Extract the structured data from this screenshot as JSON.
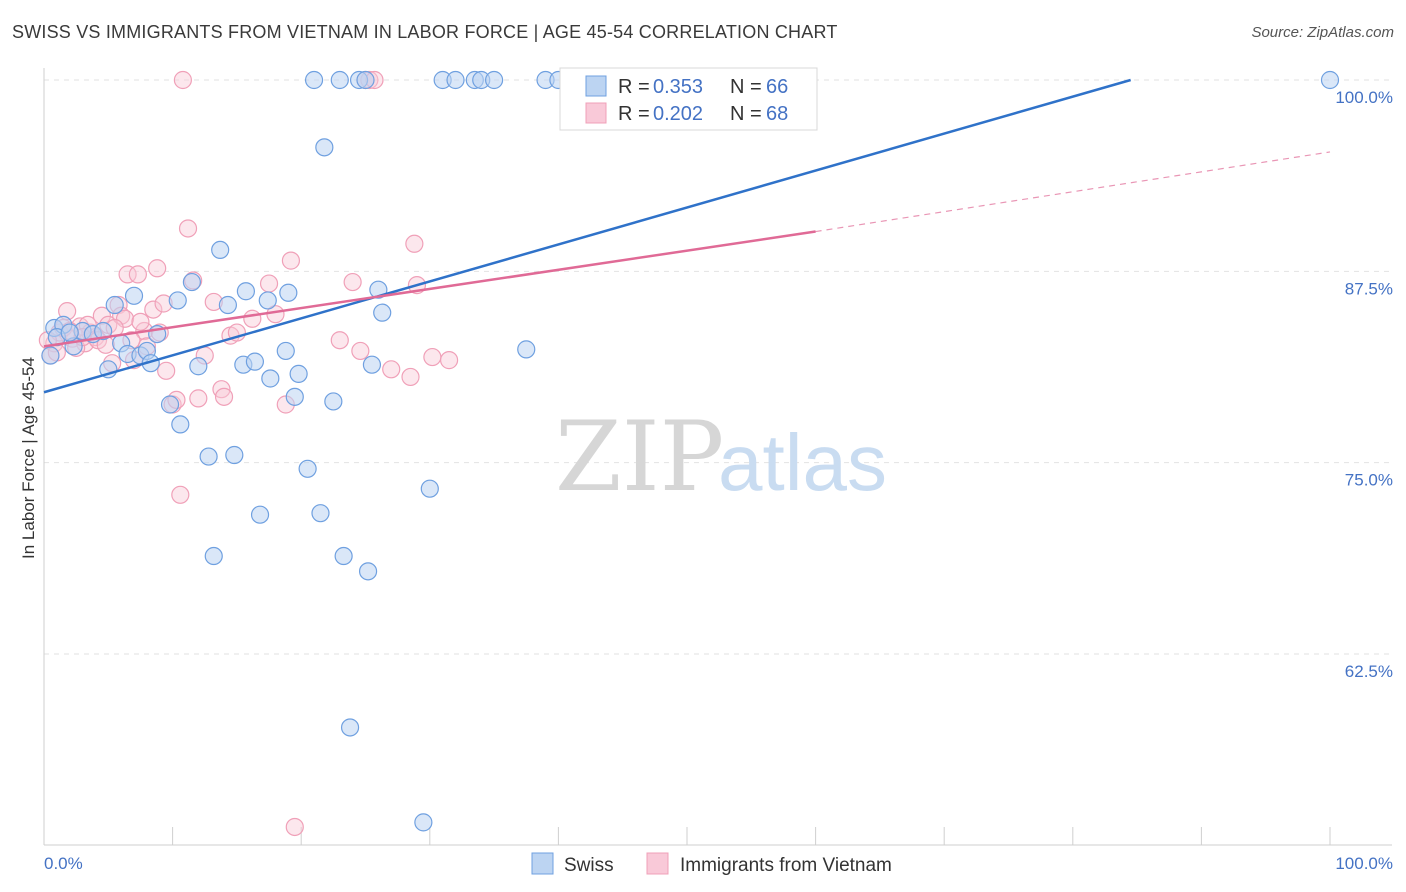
{
  "title": "SWISS VS IMMIGRANTS FROM VIETNAM IN LABOR FORCE | AGE 45-54 CORRELATION CHART",
  "source": "Source: ZipAtlas.com",
  "watermark": {
    "zip": "ZIP",
    "atlas": "atlas"
  },
  "chart_data": {
    "type": "scatter",
    "ylabel": "In Labor Force | Age 45-54",
    "xlim": [
      0,
      100
    ],
    "ylim": [
      51,
      102
    ],
    "x_tick_labels": [
      "0.0%",
      "100.0%"
    ],
    "y_ticks": [
      100,
      87.5,
      75,
      62.5
    ],
    "y_tick_labels": [
      "100.0%",
      "87.5%",
      "75.0%",
      "62.5%"
    ],
    "legend": [
      {
        "r_label": "R =",
        "r_value": "0.353",
        "n_label": "N =",
        "n_value": "66"
      },
      {
        "r_label": "R =",
        "r_value": "0.202",
        "n_label": "N =",
        "n_value": "68"
      }
    ],
    "series": [
      {
        "name": "Swiss",
        "color": "#6fa0e0",
        "line_color": "#2f72c9",
        "trend": {
          "x0": 0,
          "y0": 79.6,
          "x1": 84.5,
          "y1": 100.0
        },
        "points": [
          [
            0.8,
            83.8
          ],
          [
            1.5,
            84.0
          ],
          [
            2.3,
            82.6
          ],
          [
            3.0,
            83.6
          ],
          [
            3.8,
            83.4
          ],
          [
            4.6,
            83.6
          ],
          [
            5.0,
            81.1
          ],
          [
            5.5,
            85.3
          ],
          [
            6.0,
            82.8
          ],
          [
            6.5,
            82.1
          ],
          [
            7.0,
            85.9
          ],
          [
            7.5,
            82.0
          ],
          [
            8.0,
            82.3
          ],
          [
            8.3,
            81.5
          ],
          [
            8.8,
            83.4
          ],
          [
            9.8,
            78.8
          ],
          [
            10.4,
            85.6
          ],
          [
            10.6,
            77.5
          ],
          [
            11.5,
            86.8
          ],
          [
            12.0,
            81.3
          ],
          [
            12.8,
            75.4
          ],
          [
            13.2,
            68.9
          ],
          [
            13.7,
            88.9
          ],
          [
            14.3,
            85.3
          ],
          [
            14.8,
            75.5
          ],
          [
            15.5,
            81.4
          ],
          [
            15.7,
            86.2
          ],
          [
            16.4,
            81.6
          ],
          [
            16.8,
            71.6
          ],
          [
            17.4,
            85.6
          ],
          [
            17.6,
            80.5
          ],
          [
            18.8,
            82.3
          ],
          [
            19.0,
            86.1
          ],
          [
            19.5,
            79.3
          ],
          [
            19.8,
            80.8
          ],
          [
            20.5,
            74.6
          ],
          [
            21.0,
            100.0
          ],
          [
            21.5,
            71.7
          ],
          [
            21.8,
            95.6
          ],
          [
            22.5,
            79.0
          ],
          [
            23.0,
            100.0
          ],
          [
            23.3,
            68.9
          ],
          [
            23.8,
            57.7
          ],
          [
            24.5,
            100.0
          ],
          [
            25.0,
            100.0
          ],
          [
            25.2,
            67.9
          ],
          [
            25.5,
            81.4
          ],
          [
            26.0,
            86.3
          ],
          [
            26.3,
            84.8
          ],
          [
            29.5,
            51.5
          ],
          [
            30.0,
            73.3
          ],
          [
            31.0,
            100.0
          ],
          [
            32.0,
            100.0
          ],
          [
            33.5,
            100.0
          ],
          [
            34.0,
            100.0
          ],
          [
            35.0,
            100.0
          ],
          [
            37.5,
            82.4
          ],
          [
            39.0,
            100.0
          ],
          [
            40.0,
            100.0
          ],
          [
            42.5,
            100.0
          ],
          [
            44.0,
            100.0
          ],
          [
            46.5,
            100.0
          ],
          [
            100.0,
            100.0
          ],
          [
            1.0,
            83.2
          ],
          [
            2.0,
            83.5
          ],
          [
            0.5,
            82.0
          ]
        ]
      },
      {
        "name": "Immigrants from Vietnam",
        "color": "#f0a0b8",
        "line_color": "#e06a96",
        "trend": {
          "x0": 0,
          "y0": 82.6,
          "x1": 60.0,
          "y1": 90.1
        },
        "trend_ext": {
          "x0": 60.0,
          "y0": 90.1,
          "x1": 100.0,
          "y1": 95.3
        },
        "points": [
          [
            0.5,
            82.0
          ],
          [
            0.8,
            82.8
          ],
          [
            1.2,
            83.5
          ],
          [
            1.8,
            84.9
          ],
          [
            2.2,
            83.1
          ],
          [
            2.8,
            83.9
          ],
          [
            3.2,
            82.8
          ],
          [
            3.6,
            83.5
          ],
          [
            4.0,
            83.2
          ],
          [
            4.5,
            84.6
          ],
          [
            5.0,
            84.0
          ],
          [
            5.3,
            81.5
          ],
          [
            5.8,
            85.3
          ],
          [
            6.0,
            84.6
          ],
          [
            6.3,
            84.4
          ],
          [
            6.5,
            87.3
          ],
          [
            7.0,
            81.7
          ],
          [
            7.3,
            87.3
          ],
          [
            7.8,
            83.6
          ],
          [
            8.0,
            82.6
          ],
          [
            8.5,
            85.0
          ],
          [
            8.8,
            87.7
          ],
          [
            9.0,
            83.5
          ],
          [
            9.3,
            85.4
          ],
          [
            9.5,
            81.0
          ],
          [
            10.0,
            78.8
          ],
          [
            10.3,
            79.1
          ],
          [
            10.6,
            72.9
          ],
          [
            10.8,
            100.0
          ],
          [
            11.2,
            90.3
          ],
          [
            11.6,
            86.9
          ],
          [
            12.0,
            79.2
          ],
          [
            12.5,
            82.0
          ],
          [
            13.2,
            85.5
          ],
          [
            13.8,
            79.8
          ],
          [
            14.0,
            79.3
          ],
          [
            14.5,
            83.3
          ],
          [
            15.0,
            83.5
          ],
          [
            16.2,
            84.4
          ],
          [
            17.5,
            86.7
          ],
          [
            18.0,
            84.7
          ],
          [
            18.8,
            78.8
          ],
          [
            19.2,
            88.2
          ],
          [
            19.5,
            51.2
          ],
          [
            23.0,
            83.0
          ],
          [
            24.0,
            86.8
          ],
          [
            24.6,
            82.3
          ],
          [
            25.0,
            100.0
          ],
          [
            25.3,
            100.0
          ],
          [
            25.7,
            100.0
          ],
          [
            27.0,
            81.1
          ],
          [
            28.5,
            80.6
          ],
          [
            29.0,
            86.6
          ],
          [
            28.8,
            89.3
          ],
          [
            30.2,
            81.9
          ],
          [
            31.5,
            81.7
          ],
          [
            1.5,
            83.8
          ],
          [
            2.5,
            82.5
          ],
          [
            3.4,
            84.0
          ],
          [
            4.2,
            83.0
          ],
          [
            0.3,
            83.0
          ],
          [
            1.0,
            82.2
          ],
          [
            2.0,
            83.6
          ],
          [
            3.0,
            83.2
          ],
          [
            4.8,
            82.7
          ],
          [
            5.5,
            83.8
          ],
          [
            6.8,
            83.0
          ],
          [
            7.5,
            84.2
          ]
        ]
      }
    ],
    "bottom_legend": [
      "Swiss",
      "Immigrants from Vietnam"
    ]
  }
}
